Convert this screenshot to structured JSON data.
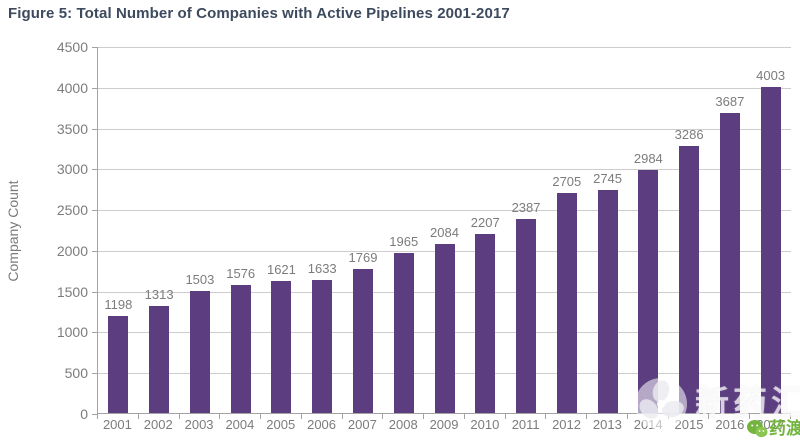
{
  "chart_data": {
    "type": "bar",
    "title": "Figure 5: Total Number of Companies with Active Pipelines 2001-2017",
    "xlabel": "",
    "ylabel": "Company Count",
    "categories": [
      "2001",
      "2002",
      "2003",
      "2004",
      "2005",
      "2006",
      "2007",
      "2008",
      "2009",
      "2010",
      "2011",
      "2012",
      "2013",
      "2014",
      "2015",
      "2016",
      "2017"
    ],
    "values": [
      1198,
      1313,
      1503,
      1576,
      1621,
      1633,
      1769,
      1965,
      2084,
      2207,
      2387,
      2705,
      2745,
      2984,
      3286,
      3687,
      4003
    ],
    "ylim": [
      0,
      4500
    ],
    "ytick_step": 500,
    "grid": true,
    "legend": "none",
    "bar_color": "#5c3e80"
  },
  "colors": {
    "title": "#3d4a5e",
    "axis_line": "#a3a3a3",
    "gridline": "#cdcdcd",
    "tick_label": "#7c7c7c",
    "watermark_green": "#72b43e"
  },
  "watermarks": {
    "brand_text": "新药汇",
    "badge_text": "药渡"
  }
}
